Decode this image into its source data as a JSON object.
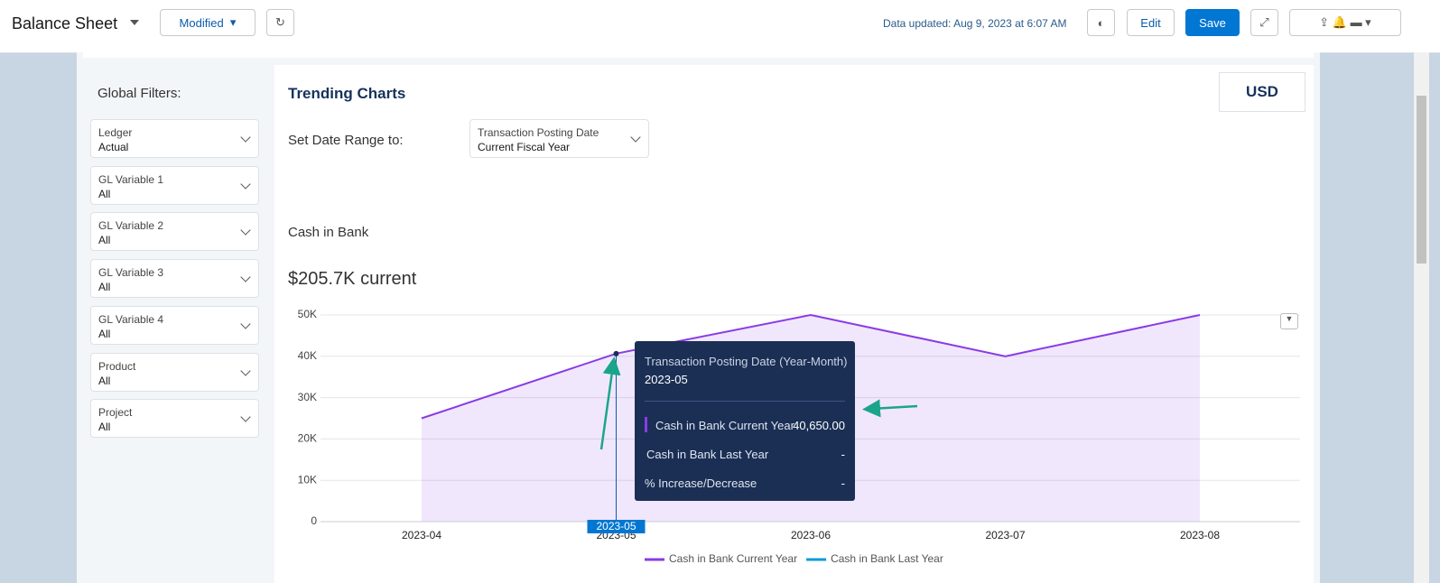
{
  "header": {
    "title": "Balance Sheet",
    "view": "Modified",
    "updated": "Data updated: Aug 9, 2023 at 6:07 AM",
    "edit": "Edit",
    "save": "Save"
  },
  "filters": {
    "title": "Global Filters:",
    "items": [
      {
        "label": "Ledger",
        "value": "Actual"
      },
      {
        "label": "GL Variable 1",
        "value": "All"
      },
      {
        "label": "GL Variable 2",
        "value": "All"
      },
      {
        "label": "GL Variable 3",
        "value": "All"
      },
      {
        "label": "GL Variable 4",
        "value": "All"
      },
      {
        "label": "Product",
        "value": "All"
      },
      {
        "label": "Project",
        "value": "All"
      }
    ]
  },
  "panel": {
    "title": "Trending Charts",
    "currency": "USD",
    "range_label": "Set Date Range to:",
    "range_field": "Transaction Posting Date",
    "range_value": "Current Fiscal Year"
  },
  "chart": {
    "type": "area",
    "title": "Cash in Bank",
    "subtitle": "$205.7K current",
    "categories": [
      "2023-04",
      "2023-05",
      "2023-06",
      "2023-07",
      "2023-08"
    ],
    "series": [
      {
        "name": "Cash in Bank Current Year",
        "color": "#8a3be6",
        "values": [
          25000,
          40650,
          50000,
          40000,
          50000
        ]
      },
      {
        "name": "Cash in Bank Last Year",
        "color": "#0b9bd8",
        "values": [
          null,
          null,
          null,
          null,
          null
        ]
      }
    ],
    "ylim": [
      0,
      50000
    ],
    "yticks": [
      0,
      {
        "value": 10000,
        "label": "10K"
      },
      {
        "value": 20000,
        "label": "20K"
      },
      {
        "value": 30000,
        "label": "30K"
      },
      {
        "value": 40000,
        "label": "40K"
      },
      {
        "value": 50000,
        "label": "50K"
      }
    ],
    "grid": true
  },
  "tooltip": {
    "heading": "Transaction Posting Date (Year-Month)",
    "date": "2023-05",
    "rows": [
      {
        "label": "Cash in Bank Current Year",
        "value": "40,650.00"
      },
      {
        "label": "Cash in Bank Last Year",
        "value": "-"
      },
      {
        "label": "% Increase/Decrease",
        "value": "-"
      }
    ]
  }
}
